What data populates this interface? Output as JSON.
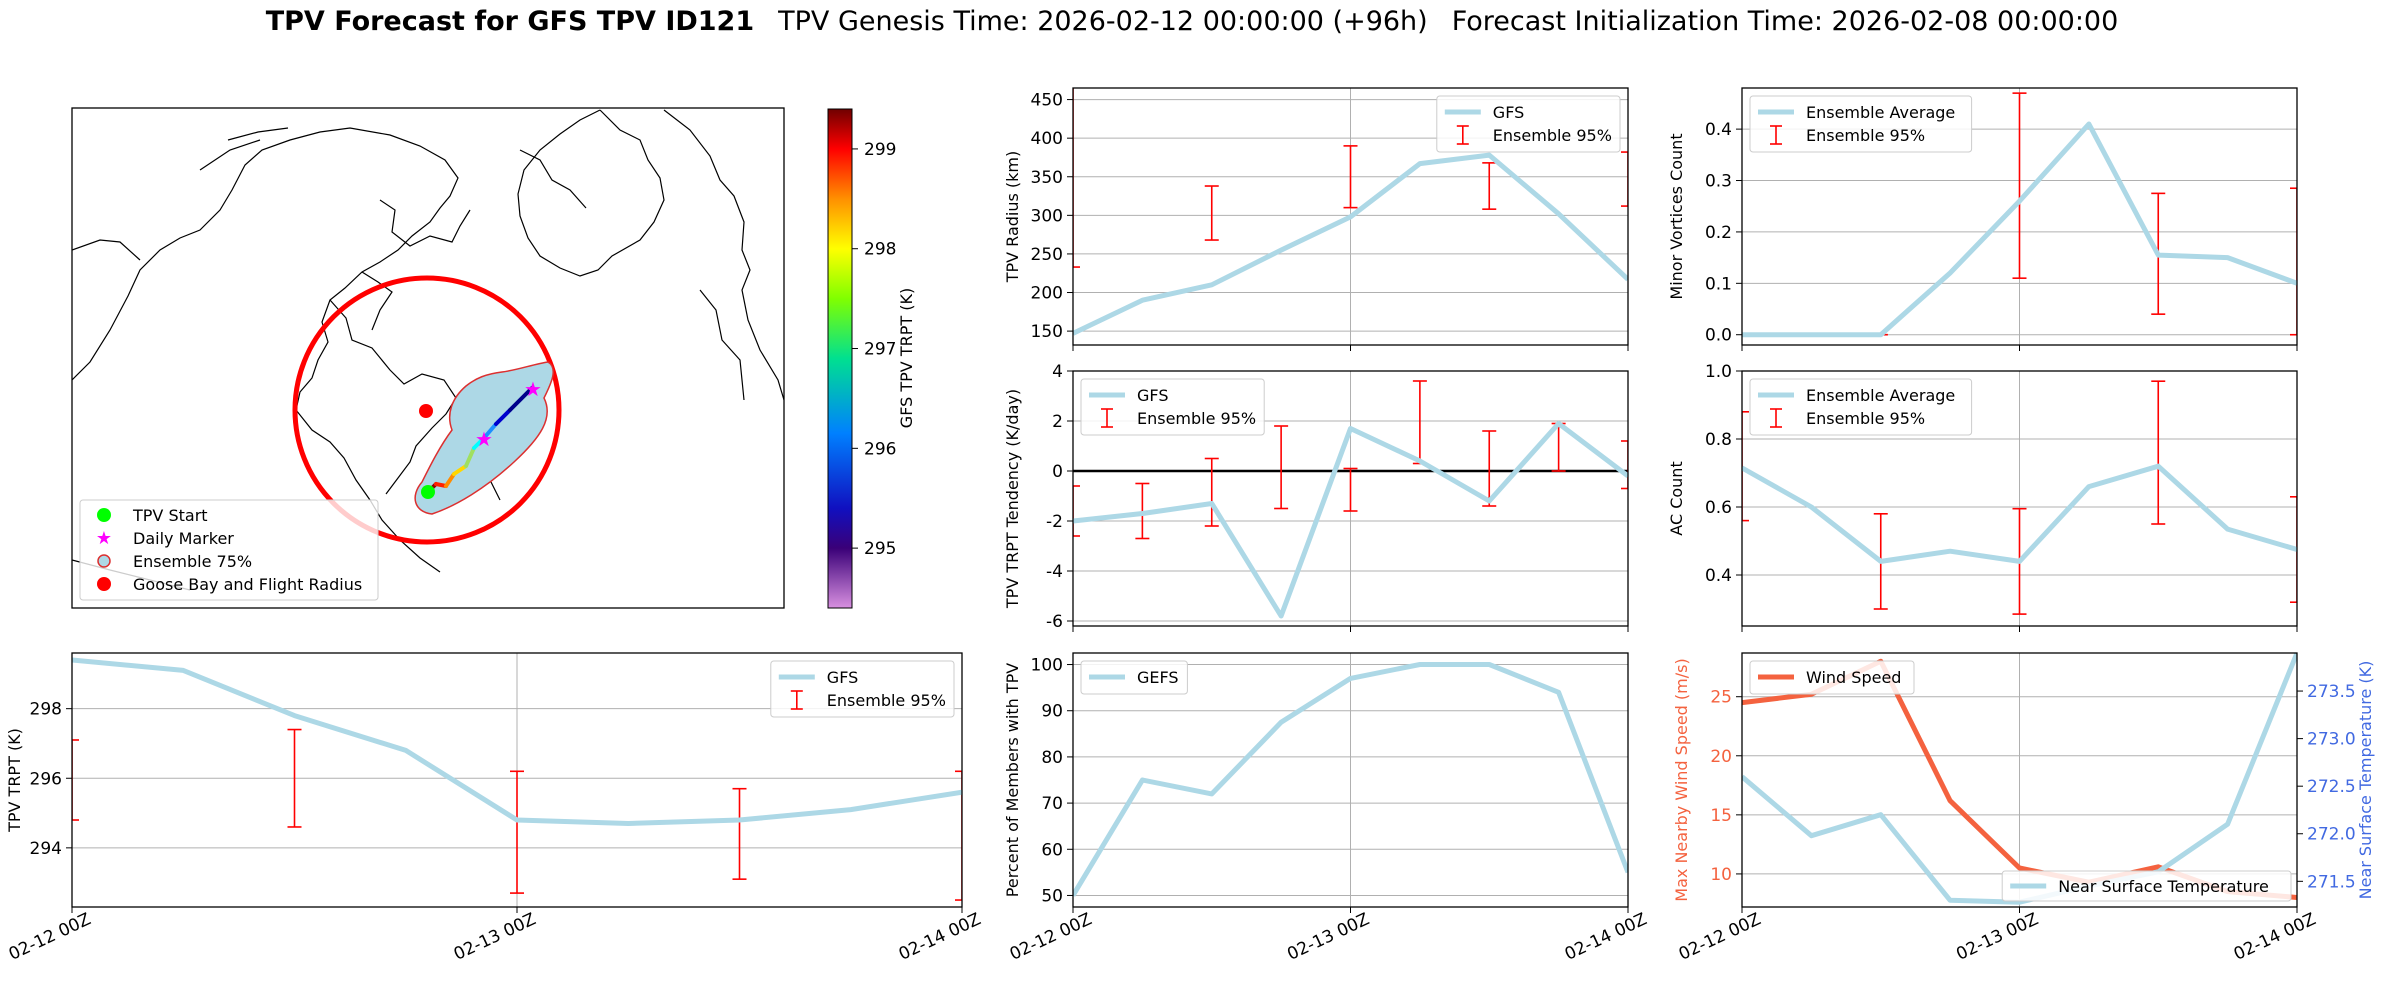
{
  "figure": {
    "title_bold": "TPV Forecast for GFS TPV ID121",
    "title_genesis": "TPV Genesis Time: 2026-02-12 00:00:00 (+96h)",
    "title_init": "Forecast Initialization Time: 2026-02-08 00:00:00"
  },
  "map_panel": {
    "legend": [
      "TPV Start",
      "Daily Marker",
      "Ensemble 75%",
      "Goose Bay and Flight Radius"
    ],
    "colorbar": {
      "label": "GFS TPV TRPT (K)",
      "ticks": [
        "295",
        "296",
        "297",
        "298",
        "299"
      ],
      "range": [
        294.4,
        299.4
      ]
    },
    "colors": {
      "start": "#00ff00",
      "marker": "#ff00ff",
      "ensemble_fill": "#add8e6",
      "ensemble_edge": "#dc3030",
      "goose_bay": "#ff0000"
    }
  },
  "colors": {
    "gfs_line": "#add8e6",
    "errorbar": "#ff0000",
    "wind": "#f4623f",
    "temp_axis": "#4169e1"
  },
  "chart_data": [
    {
      "id": "radius",
      "type": "line",
      "title": "",
      "xlabel": "",
      "ylabel": "TPV Radius (km)",
      "x": [
        0,
        0.25,
        0.5,
        0.75,
        1.0,
        1.25,
        1.5,
        1.75,
        2.0
      ],
      "xlim": [
        0,
        2
      ],
      "ylim": [
        132,
        465
      ],
      "yticks": [
        150,
        200,
        250,
        300,
        350,
        400,
        450
      ],
      "xtick_labels": [
        "02-12 00Z",
        "02-13 00Z",
        "02-14 00Z"
      ],
      "show_xticklabels": false,
      "series": [
        {
          "name": "GFS",
          "values": [
            147,
            190,
            210,
            255,
            298,
            367,
            378,
            302,
            217
          ]
        }
      ],
      "errorbars": {
        "name": "Ensemble 95%",
        "x": [
          0,
          0.5,
          1.0,
          1.5,
          2.0
        ],
        "low": [
          233,
          268,
          310,
          308,
          312
        ],
        "high": [
          472,
          338,
          390,
          368,
          382
        ]
      },
      "legend": "upper right"
    },
    {
      "id": "minor",
      "type": "line",
      "title": "",
      "xlabel": "",
      "ylabel": "Minor Vortices Count",
      "x": [
        0,
        0.25,
        0.5,
        0.75,
        1.0,
        1.25,
        1.5,
        1.75,
        2.0
      ],
      "xlim": [
        0,
        2
      ],
      "ylim": [
        -0.02,
        0.48
      ],
      "yticks": [
        0.0,
        0.1,
        0.2,
        0.3,
        0.4
      ],
      "ytick_labels": [
        "0.0",
        "0.1",
        "0.2",
        "0.3",
        "0.4"
      ],
      "xtick_labels": [
        "02-12 00Z",
        "02-13 00Z",
        "02-14 00Z"
      ],
      "show_xticklabels": false,
      "series": [
        {
          "name": "Ensemble Average",
          "values": [
            0,
            0,
            0,
            0.12,
            0.26,
            0.41,
            0.155,
            0.15,
            0.1
          ]
        }
      ],
      "errorbars": {
        "name": "Ensemble 95%",
        "x": [
          0,
          0.5,
          1.0,
          1.5,
          2.0
        ],
        "low": [
          0,
          0,
          0.11,
          0.04,
          0
        ],
        "high": [
          0,
          0,
          0.47,
          0.275,
          0.285
        ]
      },
      "legend": "upper left"
    },
    {
      "id": "tendency",
      "type": "line",
      "title": "",
      "xlabel": "",
      "ylabel": "TPV TRPT Tendency (K/day)",
      "x": [
        0,
        0.25,
        0.5,
        0.75,
        1.0,
        1.25,
        1.5,
        1.75,
        2.0
      ],
      "xlim": [
        0,
        2
      ],
      "ylim": [
        -6.2,
        4
      ],
      "yticks": [
        -6,
        -4,
        -2,
        0,
        2,
        4
      ],
      "xtick_labels": [
        "02-12 00Z",
        "02-13 00Z",
        "02-14 00Z"
      ],
      "show_xticklabels": false,
      "zero_line": true,
      "series": [
        {
          "name": "GFS",
          "values": [
            -2.0,
            -1.7,
            -1.3,
            -5.8,
            1.7,
            0.4,
            -1.2,
            1.9,
            -0.2
          ]
        }
      ],
      "errorbars": {
        "name": "Ensemble 95%",
        "x": [
          0,
          0.25,
          0.5,
          0.75,
          1.0,
          1.25,
          1.5,
          1.75,
          2.0
        ],
        "low": [
          -2.6,
          -2.7,
          -2.2,
          -1.5,
          -1.6,
          0.3,
          -1.4,
          -0.0,
          -0.7
        ],
        "high": [
          -0.6,
          -0.5,
          0.5,
          1.8,
          0.1,
          3.6,
          1.6,
          1.9,
          1.2
        ]
      },
      "legend": "upper left"
    },
    {
      "id": "ac",
      "type": "line",
      "title": "",
      "xlabel": "",
      "ylabel": "AC Count",
      "x": [
        0,
        0.25,
        0.5,
        0.75,
        1.0,
        1.25,
        1.5,
        1.75,
        2.0
      ],
      "xlim": [
        0,
        2
      ],
      "ylim": [
        0.25,
        1.0
      ],
      "yticks": [
        0.4,
        0.6,
        0.8,
        1.0
      ],
      "ytick_labels": [
        "0.4",
        "0.6",
        "0.8",
        "1.0"
      ],
      "xtick_labels": [
        "02-12 00Z",
        "02-13 00Z",
        "02-14 00Z"
      ],
      "show_xticklabels": false,
      "series": [
        {
          "name": "Ensemble Average",
          "values": [
            0.715,
            0.6,
            0.44,
            0.47,
            0.44,
            0.66,
            0.72,
            0.535,
            0.475
          ]
        }
      ],
      "errorbars": {
        "name": "Ensemble 95%",
        "x": [
          0,
          0.5,
          1.0,
          1.5,
          2.0
        ],
        "low": [
          0.56,
          0.3,
          0.285,
          0.55,
          0.32
        ],
        "high": [
          0.88,
          0.58,
          0.595,
          0.97,
          0.63
        ]
      },
      "legend": "upper left"
    },
    {
      "id": "trpt",
      "type": "line",
      "title": "",
      "xlabel": "",
      "ylabel": "TPV TRPT (K)",
      "x": [
        0,
        0.25,
        0.5,
        0.75,
        1.0,
        1.25,
        1.5,
        1.75,
        2.0
      ],
      "xlim": [
        0,
        2
      ],
      "ylim": [
        292.3,
        299.6
      ],
      "yticks": [
        294,
        296,
        298
      ],
      "xtick_labels": [
        "02-12 00Z",
        "02-13 00Z",
        "02-14 00Z"
      ],
      "show_xticklabels": true,
      "series": [
        {
          "name": "GFS",
          "values": [
            299.4,
            299.1,
            297.8,
            296.8,
            294.8,
            294.7,
            294.8,
            295.1,
            295.6
          ]
        }
      ],
      "errorbars": {
        "name": "Ensemble 95%",
        "x": [
          0,
          0.5,
          1.0,
          1.5,
          2.0
        ],
        "low": [
          294.8,
          294.6,
          292.7,
          293.1,
          292.5
        ],
        "high": [
          297.1,
          297.4,
          296.2,
          295.7,
          296.2
        ]
      },
      "legend": "upper right"
    },
    {
      "id": "percent",
      "type": "line",
      "title": "",
      "xlabel": "",
      "ylabel": "Percent of Members with TPV",
      "x": [
        0,
        0.25,
        0.5,
        0.75,
        1.0,
        1.25,
        1.5,
        1.75,
        2.0
      ],
      "xlim": [
        0,
        2
      ],
      "ylim": [
        47.5,
        102.5
      ],
      "yticks": [
        50,
        60,
        70,
        80,
        90,
        100
      ],
      "xtick_labels": [
        "02-12 00Z",
        "02-13 00Z",
        "02-14 00Z"
      ],
      "show_xticklabels": true,
      "series": [
        {
          "name": "GEFS",
          "values": [
            50,
            75,
            72,
            87.5,
            97,
            100,
            100,
            94,
            55
          ]
        }
      ],
      "legend": "upper left"
    },
    {
      "id": "wind_temp",
      "type": "line",
      "title": "",
      "xlabel": "",
      "ylabel": "Max Nearby Wind Speed (m/s)",
      "ylabel_right": "Near Surface Temperature (K)",
      "x": [
        0,
        0.25,
        0.5,
        0.75,
        1.0,
        1.25,
        1.5,
        1.75,
        2.0
      ],
      "xlim": [
        0,
        2
      ],
      "ylim": [
        7.2,
        28.7
      ],
      "ylim_right": [
        271.23,
        273.9
      ],
      "yticks": [
        10,
        15,
        20,
        25
      ],
      "yticks_right": [
        271.5,
        272.0,
        272.5,
        273.0,
        273.5
      ],
      "ytick_right_labels": [
        "271.5",
        "272.0",
        "272.5",
        "273.0",
        "273.5"
      ],
      "xtick_labels": [
        "02-12 00Z",
        "02-13 00Z",
        "02-14 00Z"
      ],
      "show_xticklabels": true,
      "series": [
        {
          "name": "Wind Speed",
          "axis": "left",
          "values": [
            24.5,
            25.2,
            28.0,
            16.2,
            10.5,
            9.3,
            10.6,
            8.5,
            8.0
          ]
        },
        {
          "name": "Near Surface Temperature",
          "axis": "right",
          "values": [
            272.6,
            271.98,
            272.2,
            271.3,
            271.28,
            271.45,
            271.6,
            272.1,
            273.9
          ]
        }
      ]
    }
  ]
}
